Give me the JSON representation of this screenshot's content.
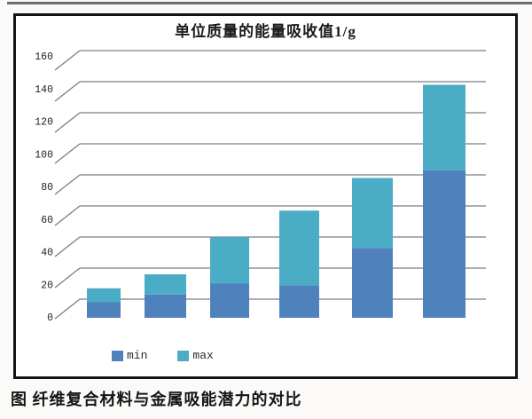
{
  "chart_data": {
    "type": "bar",
    "stacked": true,
    "style": "pseudo-3d",
    "title": "单位质量的能量吸收值1/g",
    "categories": [
      "",
      "",
      "",
      "",
      "",
      ""
    ],
    "series": [
      {
        "name": "min",
        "color": "#4F81BD",
        "values": [
          10,
          15,
          22,
          21,
          45,
          95
        ]
      },
      {
        "name": "max",
        "color": "#4BACC6",
        "values": [
          19,
          28,
          52,
          69,
          90,
          150
        ]
      }
    ],
    "stack_mode": "second-series-values-are-stack-tops",
    "xlabel": "",
    "ylabel": "",
    "ylim": [
      0,
      160
    ],
    "yticks": [
      0,
      20,
      40,
      60,
      80,
      100,
      120,
      140,
      160
    ],
    "grid": true,
    "legend_position": "bottom"
  },
  "legend": {
    "items": [
      {
        "label": "min",
        "color": "#4F81BD"
      },
      {
        "label": "max",
        "color": "#4BACC6"
      }
    ]
  },
  "caption": "图 纤维复合材料与金属吸能潜力的对比",
  "colors": {
    "min_bar": "#4F81BD",
    "max_bar": "#4BACC6",
    "gridline": "#7d7d7d",
    "frame_border": "#141414",
    "text": "#1c1c1c"
  }
}
